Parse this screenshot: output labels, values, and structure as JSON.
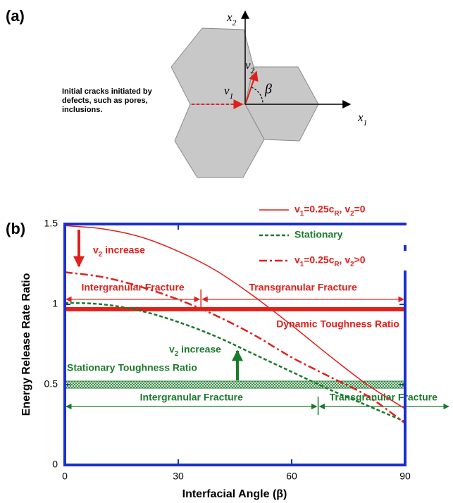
{
  "panel_a": {
    "label": "(a)",
    "axis_x1": "x1",
    "axis_x2": "x2",
    "velocity_1": "v1",
    "velocity_2": "v2",
    "angle": "β",
    "note": [
      "Initial cracks initiated by",
      "defects, such as pores,",
      "inclusions."
    ]
  },
  "chart_data": {
    "type": "line",
    "panel_label": "(b)",
    "x_label": "Interfacial Angle (β)",
    "y_label": "Energy Release Rate Ratio",
    "x": [
      0,
      10,
      20,
      30,
      40,
      50,
      60,
      70,
      80,
      90
    ],
    "series": [
      {
        "name": "v1=0.25cR, v2=0",
        "color": "#e0201b",
        "style": "solid",
        "values": [
          1.49,
          1.47,
          1.42,
          1.33,
          1.21,
          1.05,
          0.87,
          0.68,
          0.5,
          0.35
        ]
      },
      {
        "name": "Stationary",
        "color": "#1a7a2a",
        "style": "dashed",
        "values": [
          1.01,
          1.0,
          0.96,
          0.89,
          0.8,
          0.69,
          0.58,
          0.47,
          0.37,
          0.27
        ]
      },
      {
        "name": "v1=0.25cR, v2>0",
        "color": "#e0201b",
        "style": "dashdot",
        "values": [
          1.2,
          1.17,
          1.11,
          1.03,
          0.93,
          0.81,
          0.67,
          0.55,
          0.43,
          0.26
        ]
      }
    ],
    "xlim": [
      0,
      90
    ],
    "ylim": [
      0,
      1.5
    ],
    "xticks": [
      0,
      30,
      60,
      90
    ],
    "yticks": [
      0,
      0.5,
      1,
      1.5
    ],
    "frame_color": "#1a2fd0",
    "reference_lines": [
      {
        "label": "Dynamic Toughness Ratio",
        "value": 0.97,
        "color": "#e0201b",
        "style": "solid",
        "transition": 36,
        "left_label": "Intergranular Fracture",
        "right_label": "Transgranular Fracture"
      },
      {
        "label": "Stationary Toughness Ratio",
        "value": 0.5,
        "color": "#1a7a2a",
        "style": "hatched",
        "transition": 67,
        "left_label": "Intergranular Fracture",
        "right_label": "Transgranular Fracture"
      }
    ],
    "annotations": [
      {
        "text": "v2 increase",
        "color": "#e0201b"
      },
      {
        "text": "v2 increase",
        "color": "#1a7a2a"
      }
    ]
  }
}
